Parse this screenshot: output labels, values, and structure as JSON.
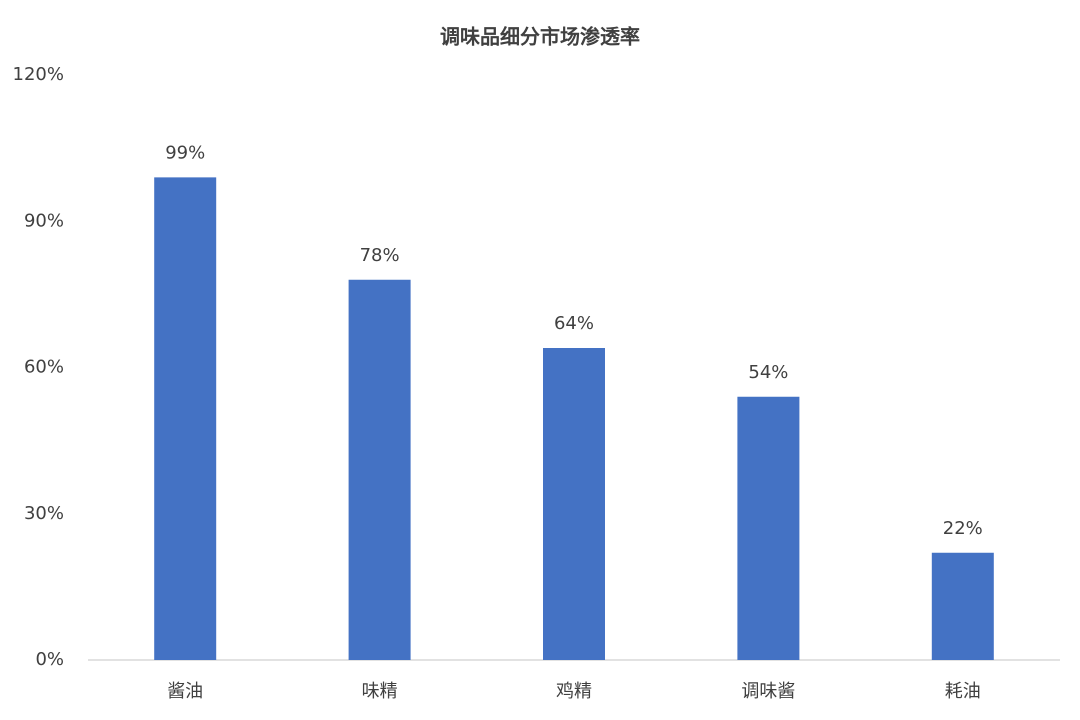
{
  "chart_data": {
    "type": "bar",
    "title": "调味品细分市场渗透率",
    "categories": [
      "酱油",
      "味精",
      "鸡精",
      "调味酱",
      "耗油"
    ],
    "values": [
      99,
      78,
      64,
      54,
      22
    ],
    "value_labels": [
      "99%",
      "78%",
      "64%",
      "54%",
      "22%"
    ],
    "color": "#4472c4",
    "ylim": [
      0,
      120
    ],
    "yticks": [
      {
        "value": 0,
        "label": "0%"
      },
      {
        "value": 30,
        "label": "30%"
      },
      {
        "value": 60,
        "label": "60%"
      },
      {
        "value": 90,
        "label": "90%"
      },
      {
        "value": 120,
        "label": "120%"
      }
    ],
    "grid": false
  }
}
